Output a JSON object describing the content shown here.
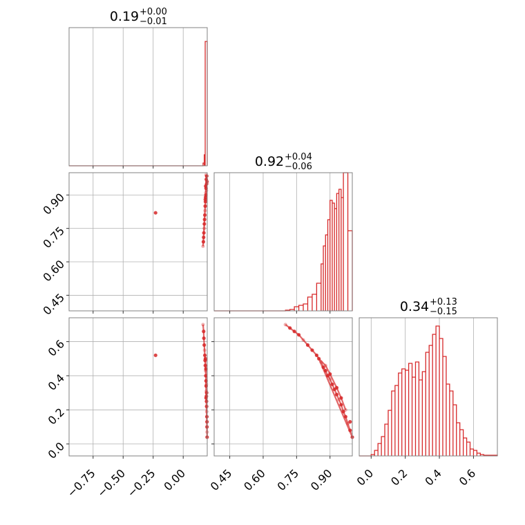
{
  "chart_data": {
    "type": "corner",
    "color": "#d62728",
    "panels": [
      {
        "id": "hist-p0",
        "type": "histogram",
        "title": {
          "value": "0.19",
          "upper": "+0.00",
          "lower": "−0.01"
        },
        "xlim": [
          -0.95,
          0.2
        ],
        "x_gridlines": [
          -0.75,
          -0.5,
          -0.25,
          0.0
        ],
        "bins": [
          [
            0.165,
            0.175,
            0.02
          ],
          [
            0.175,
            0.183,
            0.08
          ],
          [
            0.183,
            0.2,
            0.9
          ]
        ]
      },
      {
        "id": "hist-p1",
        "type": "histogram",
        "title": {
          "value": "0.92",
          "upper": "+0.04",
          "lower": "−0.06"
        },
        "xlim": [
          0.38,
          1.0
        ],
        "x_gridlines": [
          0.45,
          0.6,
          0.75,
          0.9
        ],
        "ticks": [
          0.45,
          0.6,
          0.75,
          0.9
        ],
        "tick_labels": [
          "0.45",
          "0.60",
          "0.75",
          "0.90"
        ],
        "bins": [
          [
            0.7,
            0.72,
            0.005
          ],
          [
            0.72,
            0.74,
            0.01
          ],
          [
            0.74,
            0.76,
            0.03
          ],
          [
            0.76,
            0.78,
            0.04
          ],
          [
            0.78,
            0.8,
            0.05
          ],
          [
            0.8,
            0.82,
            0.1
          ],
          [
            0.82,
            0.84,
            0.12
          ],
          [
            0.84,
            0.86,
            0.2
          ],
          [
            0.86,
            0.87,
            0.34
          ],
          [
            0.87,
            0.88,
            0.47
          ],
          [
            0.88,
            0.89,
            0.55
          ],
          [
            0.89,
            0.9,
            0.66
          ],
          [
            0.9,
            0.91,
            0.8
          ],
          [
            0.91,
            0.92,
            0.78
          ],
          [
            0.92,
            0.93,
            0.74
          ],
          [
            0.93,
            0.94,
            0.85
          ],
          [
            0.94,
            0.95,
            0.88
          ],
          [
            0.95,
            0.96,
            0.82
          ],
          [
            0.96,
            0.98,
            1.0
          ],
          [
            0.98,
            1.0,
            0.58
          ]
        ]
      },
      {
        "id": "hist-p2",
        "type": "histogram",
        "title": {
          "value": "0.34",
          "upper": "+0.13",
          "lower": "−0.15"
        },
        "xlim": [
          -0.07,
          0.74
        ],
        "x_gridlines": [
          0.0,
          0.2,
          0.4,
          0.6
        ],
        "ticks": [
          0.0,
          0.2,
          0.4,
          0.6
        ],
        "tick_labels": [
          "0.0",
          "0.2",
          "0.4",
          "0.6"
        ],
        "bins": [
          [
            0.0,
            0.02,
            0.01
          ],
          [
            0.02,
            0.04,
            0.04
          ],
          [
            0.04,
            0.06,
            0.09
          ],
          [
            0.06,
            0.08,
            0.14
          ],
          [
            0.08,
            0.1,
            0.23
          ],
          [
            0.1,
            0.12,
            0.33
          ],
          [
            0.12,
            0.14,
            0.47
          ],
          [
            0.14,
            0.16,
            0.51
          ],
          [
            0.16,
            0.18,
            0.6
          ],
          [
            0.18,
            0.2,
            0.63
          ],
          [
            0.2,
            0.22,
            0.62
          ],
          [
            0.22,
            0.24,
            0.67
          ],
          [
            0.24,
            0.26,
            0.57
          ],
          [
            0.26,
            0.28,
            0.68
          ],
          [
            0.28,
            0.3,
            0.55
          ],
          [
            0.3,
            0.32,
            0.61
          ],
          [
            0.32,
            0.34,
            0.75
          ],
          [
            0.34,
            0.36,
            0.8
          ],
          [
            0.36,
            0.38,
            0.88
          ],
          [
            0.38,
            0.4,
            0.94
          ],
          [
            0.4,
            0.42,
            0.85
          ],
          [
            0.42,
            0.44,
            0.72
          ],
          [
            0.44,
            0.46,
            0.52
          ],
          [
            0.46,
            0.48,
            0.47
          ],
          [
            0.48,
            0.5,
            0.37
          ],
          [
            0.5,
            0.52,
            0.24
          ],
          [
            0.52,
            0.54,
            0.19
          ],
          [
            0.54,
            0.56,
            0.13
          ],
          [
            0.56,
            0.58,
            0.1
          ],
          [
            0.58,
            0.6,
            0.05
          ],
          [
            0.6,
            0.62,
            0.04
          ],
          [
            0.62,
            0.64,
            0.02
          ],
          [
            0.64,
            0.66,
            0.01
          ],
          [
            0.66,
            0.74,
            0.005
          ]
        ]
      },
      {
        "id": "scatter-p0-p1",
        "type": "scatter",
        "xlim": [
          -0.95,
          0.2
        ],
        "ylim": [
          0.38,
          1.0
        ],
        "x_gridlines": [
          -0.75,
          -0.5,
          -0.25,
          0.0
        ],
        "y_gridlines": [
          0.45,
          0.6,
          0.75,
          0.9
        ],
        "y_ticks": [
          0.45,
          0.6,
          0.75,
          0.9
        ],
        "y_tick_labels": [
          "0.45",
          "0.60",
          "0.75",
          "0.90"
        ],
        "points": [
          [
            0.19,
            0.99
          ],
          [
            0.192,
            0.97
          ],
          [
            0.195,
            0.95
          ],
          [
            0.19,
            0.93
          ],
          [
            0.188,
            0.91
          ],
          [
            0.186,
            0.89
          ],
          [
            0.185,
            0.87
          ],
          [
            0.183,
            0.85
          ],
          [
            0.182,
            0.83
          ],
          [
            0.18,
            0.81
          ],
          [
            0.178,
            0.79
          ],
          [
            0.176,
            0.77
          ],
          [
            0.175,
            0.75
          ],
          [
            0.172,
            0.73
          ],
          [
            0.17,
            0.71
          ],
          [
            0.168,
            0.69
          ],
          [
            0.165,
            0.67
          ],
          [
            0.196,
            0.985
          ],
          [
            0.198,
            0.96
          ],
          [
            0.187,
            0.94
          ],
          [
            0.193,
            0.92
          ],
          [
            0.189,
            0.9
          ],
          [
            0.184,
            0.88
          ],
          [
            -0.23,
            0.82
          ]
        ]
      },
      {
        "id": "scatter-p0-p2",
        "type": "scatter",
        "xlim": [
          -0.95,
          0.2
        ],
        "ylim": [
          -0.07,
          0.74
        ],
        "x_gridlines": [
          -0.75,
          -0.5,
          -0.25,
          0.0
        ],
        "x_ticks": [
          -0.75,
          -0.5,
          -0.25,
          0.0
        ],
        "x_tick_labels": [
          "−0.75",
          "−0.50",
          "−0.25",
          "0.00"
        ],
        "y_gridlines": [
          0.0,
          0.2,
          0.4,
          0.6
        ],
        "y_ticks": [
          0.0,
          0.2,
          0.4,
          0.6
        ],
        "y_tick_labels": [
          "0.0",
          "0.2",
          "0.4",
          "0.6"
        ],
        "points": [
          [
            0.165,
            0.7
          ],
          [
            0.17,
            0.66
          ],
          [
            0.172,
            0.62
          ],
          [
            0.175,
            0.58
          ],
          [
            0.178,
            0.55
          ],
          [
            0.18,
            0.52
          ],
          [
            0.182,
            0.49
          ],
          [
            0.184,
            0.46
          ],
          [
            0.186,
            0.43
          ],
          [
            0.188,
            0.4
          ],
          [
            0.19,
            0.37
          ],
          [
            0.191,
            0.34
          ],
          [
            0.192,
            0.31
          ],
          [
            0.193,
            0.28
          ],
          [
            0.194,
            0.25
          ],
          [
            0.195,
            0.22
          ],
          [
            0.196,
            0.19
          ],
          [
            0.197,
            0.16
          ],
          [
            0.198,
            0.13
          ],
          [
            0.198,
            0.1
          ],
          [
            0.199,
            0.07
          ],
          [
            0.199,
            0.04
          ],
          [
            0.185,
            0.5
          ],
          [
            0.189,
            0.44
          ],
          [
            0.193,
            0.35
          ],
          [
            0.195,
            0.3
          ],
          [
            0.19,
            0.27
          ],
          [
            -0.23,
            0.52
          ]
        ]
      },
      {
        "id": "scatter-p1-p2",
        "type": "scatter",
        "xlim": [
          0.38,
          1.0
        ],
        "ylim": [
          -0.07,
          0.74
        ],
        "x_gridlines": [
          0.45,
          0.6,
          0.75,
          0.9
        ],
        "x_ticks": [
          0.45,
          0.6,
          0.75,
          0.9
        ],
        "x_tick_labels": [
          "0.45",
          "0.60",
          "0.75",
          "0.90"
        ],
        "y_gridlines": [
          0.0,
          0.2,
          0.4,
          0.6
        ],
        "points": [
          [
            0.7,
            0.7
          ],
          [
            0.72,
            0.68
          ],
          [
            0.74,
            0.66
          ],
          [
            0.76,
            0.64
          ],
          [
            0.78,
            0.61
          ],
          [
            0.8,
            0.58
          ],
          [
            0.82,
            0.55
          ],
          [
            0.84,
            0.52
          ],
          [
            0.86,
            0.48
          ],
          [
            0.87,
            0.45
          ],
          [
            0.88,
            0.43
          ],
          [
            0.89,
            0.4
          ],
          [
            0.9,
            0.38
          ],
          [
            0.91,
            0.35
          ],
          [
            0.92,
            0.32
          ],
          [
            0.93,
            0.29
          ],
          [
            0.94,
            0.26
          ],
          [
            0.95,
            0.23
          ],
          [
            0.96,
            0.19
          ],
          [
            0.97,
            0.16
          ],
          [
            0.98,
            0.12
          ],
          [
            0.99,
            0.08
          ],
          [
            1.0,
            0.04
          ],
          [
            0.85,
            0.5
          ],
          [
            0.88,
            0.46
          ],
          [
            0.9,
            0.41
          ],
          [
            0.93,
            0.33
          ],
          [
            0.95,
            0.27
          ],
          [
            0.97,
            0.2
          ],
          [
            0.99,
            0.13
          ]
        ]
      }
    ]
  }
}
